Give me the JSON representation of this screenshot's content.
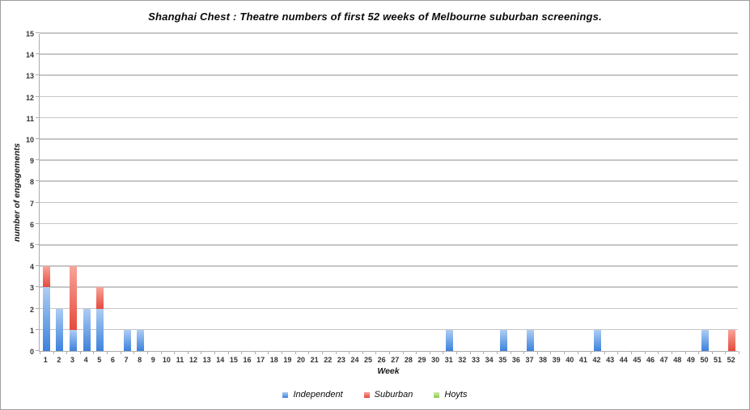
{
  "page": {
    "background": "#ffffff",
    "border_color": "#9e9e9e"
  },
  "chart_data": {
    "type": "bar",
    "stacked": true,
    "title": "Shanghai Chest : Theatre numbers of first 52 weeks of Melbourne suburban screenings.",
    "xlabel": "Week",
    "ylabel": "number of engagements",
    "ylim": [
      0,
      15
    ],
    "ytick_step": 1,
    "grid": true,
    "legend_position": "bottom",
    "axis_color": "#adadad",
    "gridline_color": "#c6c6c6",
    "tick_label_color": "#333333",
    "categories": [
      1,
      2,
      3,
      4,
      5,
      6,
      7,
      8,
      9,
      10,
      11,
      12,
      13,
      14,
      15,
      16,
      17,
      18,
      19,
      20,
      21,
      22,
      23,
      24,
      25,
      26,
      27,
      28,
      29,
      30,
      31,
      32,
      33,
      34,
      35,
      36,
      37,
      38,
      39,
      40,
      41,
      42,
      43,
      44,
      45,
      46,
      47,
      48,
      49,
      50,
      51,
      52
    ],
    "series": [
      {
        "name": "Independent",
        "color": "#3d82dc",
        "color_light": "#aecdf4",
        "values": [
          3,
          2,
          1,
          2,
          2,
          0,
          1,
          1,
          0,
          0,
          0,
          0,
          0,
          0,
          0,
          0,
          0,
          0,
          0,
          0,
          0,
          0,
          0,
          0,
          0,
          0,
          0,
          0,
          0,
          0,
          1,
          0,
          0,
          0,
          1,
          0,
          1,
          0,
          0,
          0,
          0,
          1,
          0,
          0,
          0,
          0,
          0,
          0,
          0,
          1,
          0,
          0
        ]
      },
      {
        "name": "Suburban",
        "color": "#e64a3c",
        "color_light": "#f8a49a",
        "values": [
          1,
          0,
          3,
          0,
          1,
          0,
          0,
          0,
          0,
          0,
          0,
          0,
          0,
          0,
          0,
          0,
          0,
          0,
          0,
          0,
          0,
          0,
          0,
          0,
          0,
          0,
          0,
          0,
          0,
          0,
          0,
          0,
          0,
          0,
          0,
          0,
          0,
          0,
          0,
          0,
          0,
          0,
          0,
          0,
          0,
          0,
          0,
          0,
          0,
          0,
          0,
          1
        ]
      },
      {
        "name": "Hoyts",
        "color": "#8ec84e",
        "color_light": "#d2ecae",
        "values": [
          0,
          0,
          0,
          0,
          0,
          0,
          0,
          0,
          0,
          0,
          0,
          0,
          0,
          0,
          0,
          0,
          0,
          0,
          0,
          0,
          0,
          0,
          0,
          0,
          0,
          0,
          0,
          0,
          0,
          0,
          0,
          0,
          0,
          0,
          0,
          0,
          0,
          0,
          0,
          0,
          0,
          0,
          0,
          0,
          0,
          0,
          0,
          0,
          0,
          0,
          0,
          0
        ]
      }
    ]
  }
}
